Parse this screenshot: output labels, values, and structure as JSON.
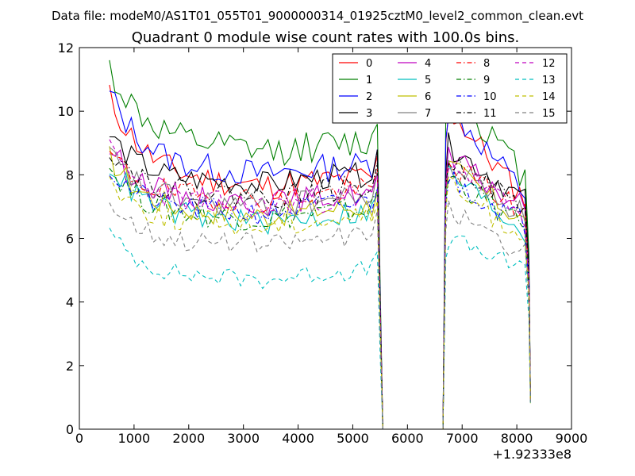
{
  "chart_data": {
    "type": "line",
    "suptitle": "Data file: modeM0/AS1T01_055T01_9000000314_01925cztM0_level2_common_clean.evt",
    "title": "Quadrant 0 module wise count rates with 100.0s bins.",
    "xlabel": "",
    "ylabel": "",
    "xlim": [
      0,
      9000
    ],
    "ylim": [
      0,
      12
    ],
    "x_offset_label": "+1.92333e8",
    "x_ticks": [
      "0",
      "1000",
      "2000",
      "3000",
      "4000",
      "5000",
      "6000",
      "7000",
      "8000",
      "9000"
    ],
    "y_ticks": [
      "0",
      "2",
      "4",
      "6",
      "8",
      "10",
      "12"
    ],
    "grid": false,
    "legend_position": "top-right",
    "gap": {
      "start": 5550,
      "end": 6650
    },
    "segment1": {
      "start": 550,
      "end": 5350,
      "step": 100
    },
    "segment2": {
      "start": 6750,
      "end": 8150,
      "step": 100
    },
    "series": [
      {
        "name": "0",
        "color": "#ff0000",
        "dash": "solid",
        "base": 7.2,
        "start_value": 10.6,
        "end_value": 7.2,
        "noise": 0.45
      },
      {
        "name": "1",
        "color": "#007f00",
        "dash": "solid",
        "base": 8.3,
        "start_value": 11.5,
        "end_value": 7.9,
        "noise": 0.5
      },
      {
        "name": "2",
        "color": "#0000ff",
        "dash": "solid",
        "base": 7.6,
        "start_value": 10.7,
        "end_value": 7.4,
        "noise": 0.45
      },
      {
        "name": "3",
        "color": "#000000",
        "dash": "solid",
        "base": 7.3,
        "start_value": 9.4,
        "end_value": 7.2,
        "noise": 0.4
      },
      {
        "name": "4",
        "color": "#bf00bf",
        "dash": "solid",
        "base": 6.7,
        "start_value": 9.0,
        "end_value": 6.9,
        "noise": 0.4
      },
      {
        "name": "5",
        "color": "#00bfbf",
        "dash": "solid",
        "base": 6.1,
        "start_value": 8.5,
        "end_value": 6.2,
        "noise": 0.4
      },
      {
        "name": "6",
        "color": "#bfbf00",
        "dash": "solid",
        "base": 6.3,
        "start_value": 8.7,
        "end_value": 6.5,
        "noise": 0.4
      },
      {
        "name": "7",
        "color": "#808080",
        "dash": "solid",
        "base": 6.6,
        "start_value": 8.8,
        "end_value": 6.7,
        "noise": 0.4
      },
      {
        "name": "8",
        "color": "#ff0000",
        "dash": "dashdot",
        "base": 6.8,
        "start_value": 8.8,
        "end_value": 6.8,
        "noise": 0.4
      },
      {
        "name": "9",
        "color": "#007f00",
        "dash": "dashdot",
        "base": 6.2,
        "start_value": 8.4,
        "end_value": 6.3,
        "noise": 0.4
      },
      {
        "name": "10",
        "color": "#0000ff",
        "dash": "dashdot",
        "base": 6.4,
        "start_value": 8.3,
        "end_value": 6.5,
        "noise": 0.4
      },
      {
        "name": "11",
        "color": "#000000",
        "dash": "dashdot",
        "base": 6.9,
        "start_value": 9.0,
        "end_value": 6.9,
        "noise": 0.4
      },
      {
        "name": "12",
        "color": "#bf00bf",
        "dash": "dashed",
        "base": 6.6,
        "start_value": 8.9,
        "end_value": 6.6,
        "noise": 0.4
      },
      {
        "name": "13",
        "color": "#00bfbf",
        "dash": "dashed",
        "base": 4.3,
        "start_value": 6.3,
        "end_value": 5.0,
        "noise": 0.3
      },
      {
        "name": "14",
        "color": "#bfbf00",
        "dash": "dashed",
        "base": 6.0,
        "start_value": 8.0,
        "end_value": 6.1,
        "noise": 0.4
      },
      {
        "name": "15",
        "color": "#808080",
        "dash": "dashed",
        "base": 5.4,
        "start_value": 7.3,
        "end_value": 5.5,
        "noise": 0.35
      }
    ]
  }
}
